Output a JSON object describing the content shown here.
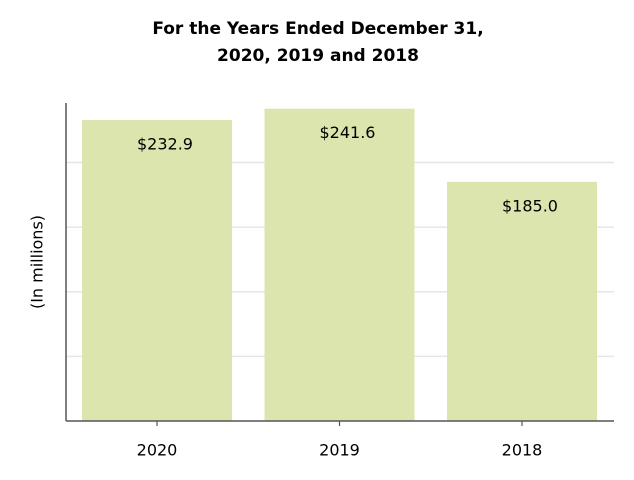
{
  "chart_data": {
    "type": "bar",
    "title": [
      "For the Years Ended December 31,",
      "2020, 2019 and 2018"
    ],
    "y_label": "(In millions)",
    "categories": [
      "2020",
      "2019",
      "2018"
    ],
    "values": [
      232.9,
      241.6,
      185
    ],
    "value_labels": [
      "$232.9",
      "$241.6",
      "$185.0"
    ],
    "color": "#dce5ae",
    "ylim": [
      0,
      246
    ],
    "yticks": [
      50,
      100,
      150,
      200
    ],
    "grid": true
  }
}
